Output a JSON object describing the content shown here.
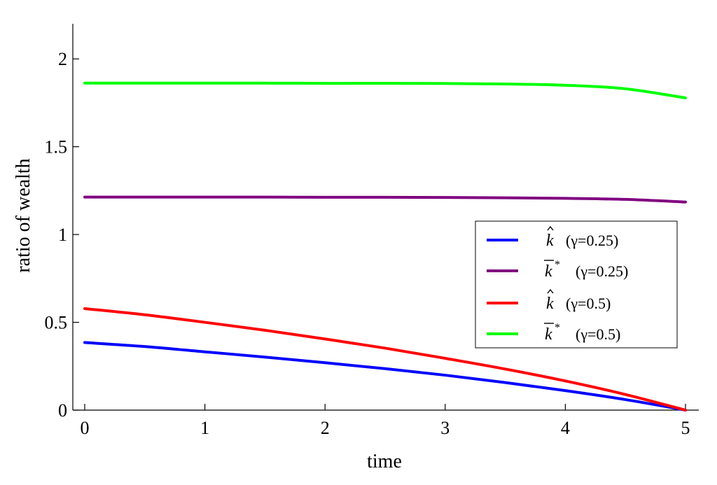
{
  "chart_data": {
    "type": "line",
    "xlabel": "time",
    "ylabel": "ratio of  wealth",
    "xlim": [
      -0.1,
      5.1
    ],
    "ylim": [
      0,
      2.2
    ],
    "xticks": [
      0,
      1,
      2,
      3,
      4,
      5
    ],
    "xtick_labels": [
      "0",
      "1",
      "2",
      "3",
      "4",
      "5"
    ],
    "yticks": [
      0,
      0.5,
      1,
      1.5,
      2
    ],
    "ytick_labels": [
      "0",
      "0.5",
      "1",
      "1.5",
      "2"
    ],
    "grid": false,
    "legend_position": "middle-right",
    "series": [
      {
        "name": "k̂ (γ=0.25)",
        "symbol": "k",
        "accent": "hat",
        "sup": "",
        "param": "(γ=0.25)",
        "color": "#0000ff",
        "x": [
          0,
          0.5,
          1,
          1.5,
          2,
          2.5,
          3,
          3.5,
          4,
          4.5,
          5
        ],
        "y": [
          0.385,
          0.362,
          0.332,
          0.302,
          0.27,
          0.236,
          0.199,
          0.157,
          0.111,
          0.06,
          0.0
        ]
      },
      {
        "name": "k̄* (γ=0.25)",
        "symbol": "k",
        "accent": "bar",
        "sup": "*",
        "param": "(γ=0.25)",
        "color": "#800080",
        "x": [
          0,
          0.5,
          1,
          1.5,
          2,
          2.5,
          3,
          3.5,
          4,
          4.5,
          5
        ],
        "y": [
          1.213,
          1.213,
          1.213,
          1.213,
          1.212,
          1.212,
          1.211,
          1.209,
          1.206,
          1.2,
          1.185
        ]
      },
      {
        "name": "k̂ (γ=0.5)",
        "symbol": "k",
        "accent": "hat",
        "sup": "",
        "param": "(γ=0.5)",
        "color": "#ff0000",
        "x": [
          0,
          0.5,
          1,
          1.5,
          2,
          2.5,
          3,
          3.5,
          4,
          4.5,
          5
        ],
        "y": [
          0.578,
          0.543,
          0.5,
          0.455,
          0.405,
          0.353,
          0.295,
          0.234,
          0.166,
          0.089,
          0.0
        ]
      },
      {
        "name": "k̄* (γ=0.5)",
        "symbol": "k",
        "accent": "bar",
        "sup": "*",
        "param": "(γ=0.5)",
        "color": "#00ff00",
        "x": [
          0,
          0.5,
          1,
          1.5,
          2,
          2.5,
          3,
          3.5,
          4,
          4.5,
          5
        ],
        "y": [
          1.862,
          1.862,
          1.862,
          1.862,
          1.861,
          1.861,
          1.86,
          1.857,
          1.85,
          1.83,
          1.778
        ]
      }
    ]
  }
}
